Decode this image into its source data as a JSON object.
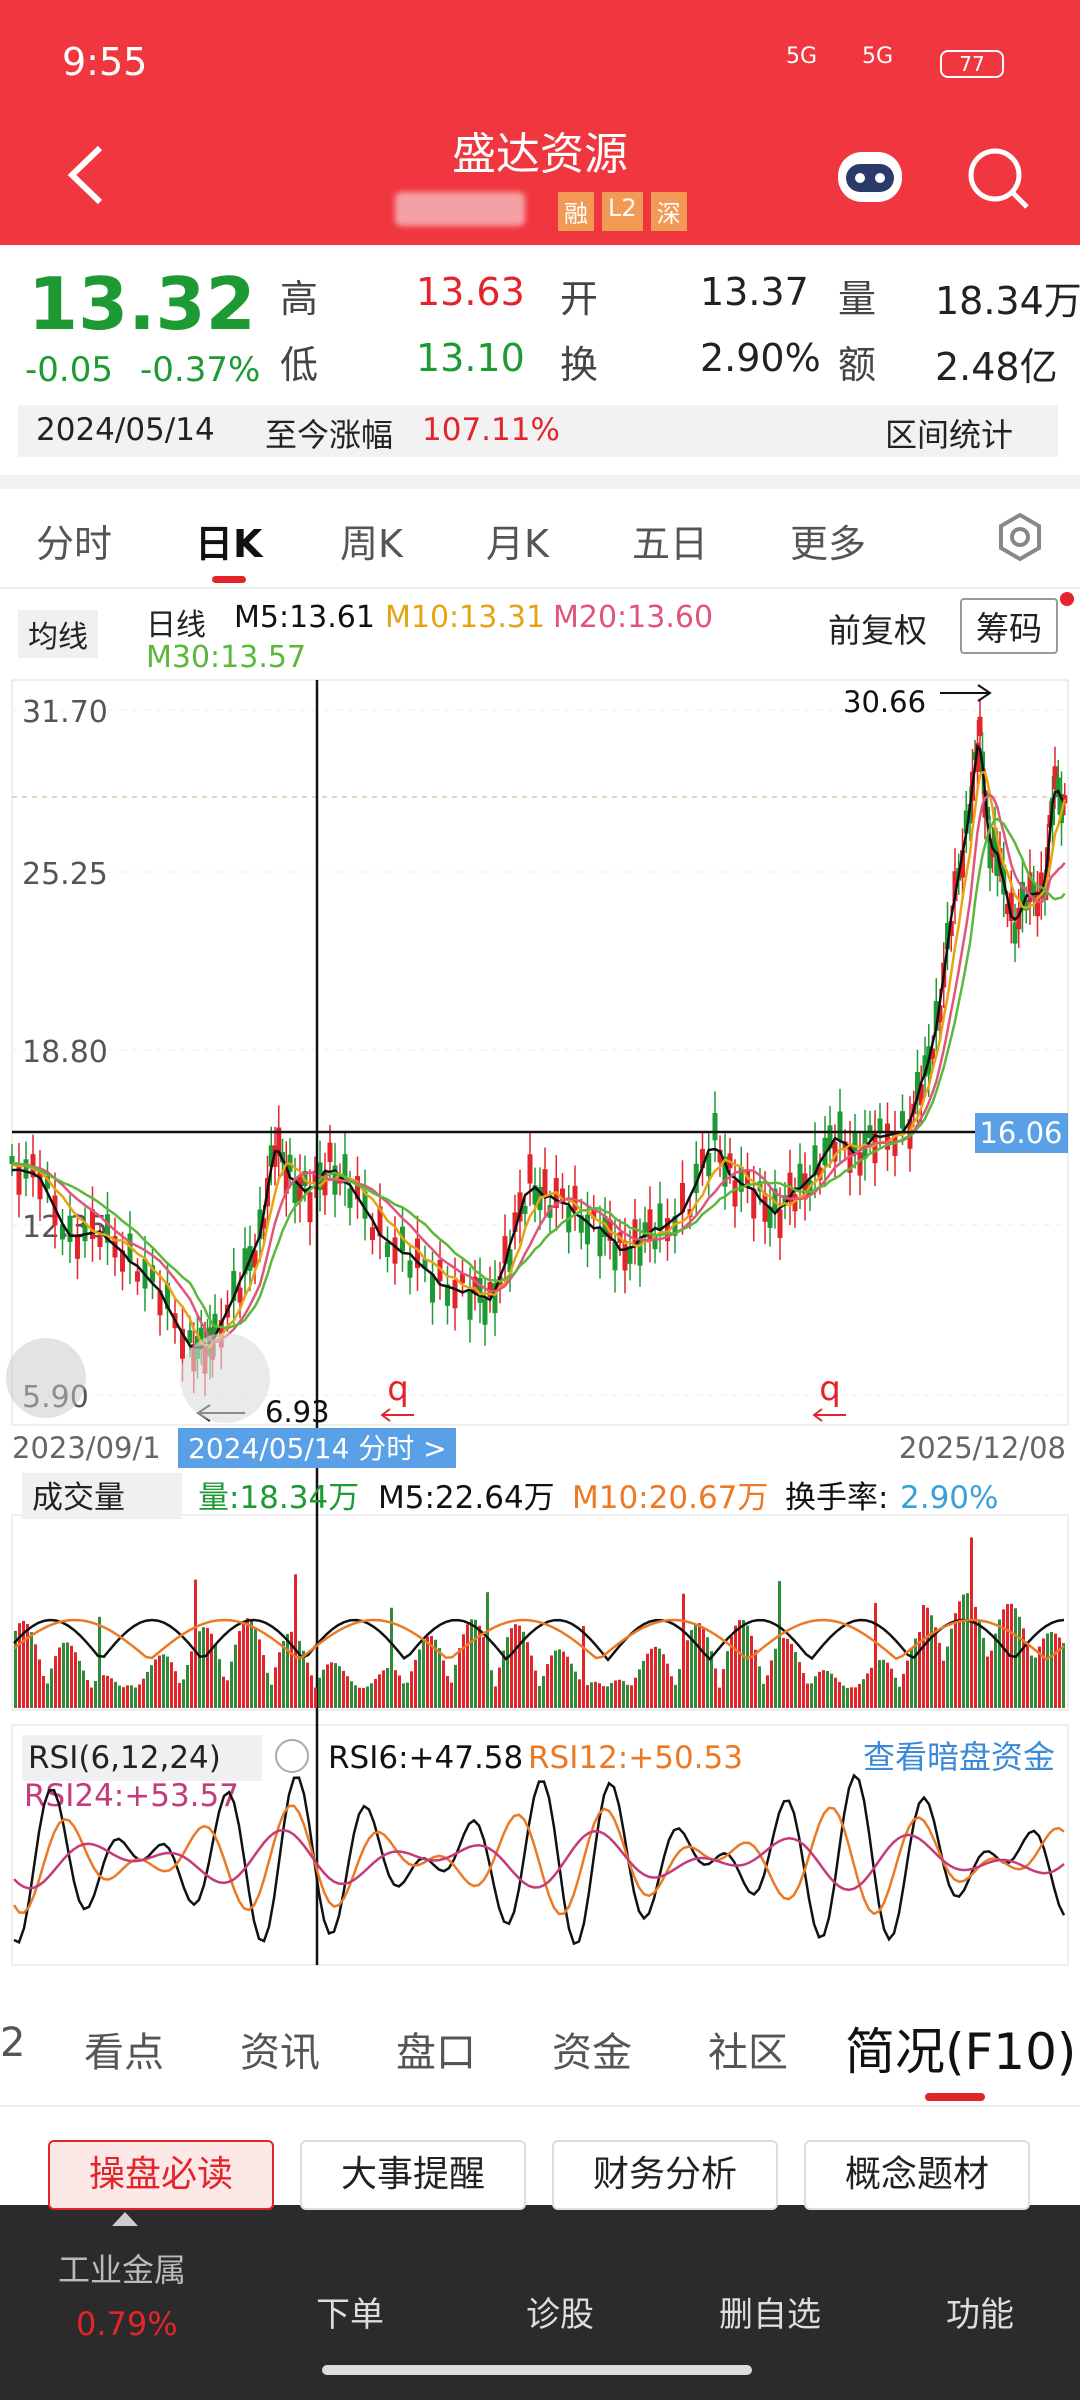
{
  "status_bar": {
    "time": "9:55",
    "signal_1": "5G",
    "signal_2": "5G",
    "battery": "77"
  },
  "header": {
    "title": "盛达资源",
    "tags": [
      "融",
      "L2",
      "深"
    ]
  },
  "quote": {
    "price": "13.32",
    "change": "-0.05",
    "change_pct": "-0.37%",
    "fields": [
      {
        "label": "高",
        "value": "13.63"
      },
      {
        "label": "开",
        "value": "13.37"
      },
      {
        "label": "量",
        "value": "18.34万"
      },
      {
        "label": "低",
        "value": "13.10"
      },
      {
        "label": "换",
        "value": "2.90%"
      },
      {
        "label": "额",
        "value": "2.48亿"
      }
    ],
    "range": {
      "date": "2024/05/14",
      "label": "至今涨幅",
      "value": "107.11%",
      "stats": "区间统计"
    }
  },
  "period_tabs": [
    "分时",
    "日K",
    "周K",
    "月K",
    "五日",
    "更多"
  ],
  "ma_bar": {
    "selector": "均线",
    "period": "日线",
    "m5": "M5:13.61",
    "m10": "M10:13.31",
    "m20": "M20:13.60",
    "m30": "M30:13.57",
    "adjust": "前复权",
    "chips": "筹码"
  },
  "price_chart": {
    "axis_labels": [
      "31.70",
      "25.25",
      "18.80",
      "12.35",
      "5.90"
    ],
    "high": "30.66",
    "low": "6.93",
    "crosshair": "16.06",
    "start_date": "2023/09/1",
    "cursor_date": "2024/05/14  分时  >",
    "end_date": "2025/12/08",
    "marker": "q"
  },
  "volume_bar": {
    "selector": "成交量",
    "vol": "量:18.34万",
    "m5": "M5:22.64万",
    "m10": "M10:20.67万",
    "turnover_label": "换手率:",
    "turnover": "2.90%"
  },
  "rsi_bar": {
    "selector": "RSI(6,12,24)",
    "rsi6": "RSI6:+47.58",
    "rsi12": "RSI12:+50.53",
    "link": "查看暗盘资金",
    "rsi24": "RSI24:+53.57"
  },
  "info_tabs": [
    "2",
    "看点",
    "资讯",
    "盘口",
    "资金",
    "社区",
    "简况(F10)"
  ],
  "info_buttons": [
    "操盘必读",
    "大事提醒",
    "财务分析",
    "概念题材"
  ],
  "bottom_nav": {
    "sector": "工业金属",
    "sector_change": "0.79%",
    "items": [
      "下单",
      "诊股",
      "删自选",
      "功能"
    ]
  }
}
